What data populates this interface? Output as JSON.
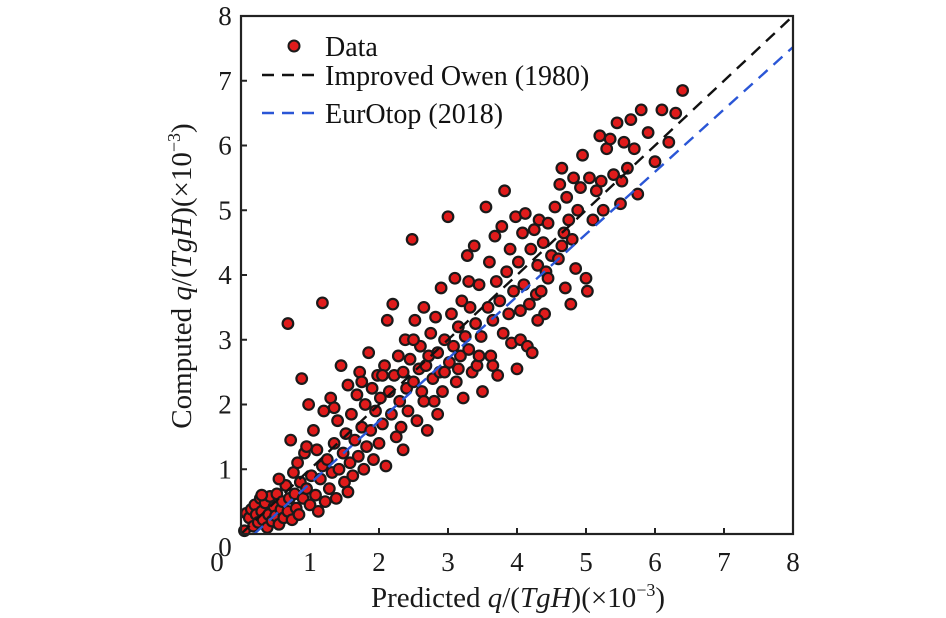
{
  "chart_data": {
    "type": "scatter",
    "title": "",
    "xlabel": {
      "prefix": "Predicted ",
      "var_q": "q",
      "slash": "/(",
      "var_T": "T",
      "var_g": "g",
      "var_H": "H",
      "suffix": ")(×10",
      "exp": "−3",
      "close": ")"
    },
    "ylabel": {
      "prefix": "Computed ",
      "var_q": "q",
      "slash": "/(",
      "var_T": "T",
      "var_g": "g",
      "var_H": "H",
      "suffix": ")(×10",
      "exp": "−3",
      "close": ")"
    },
    "xlim": [
      0,
      8
    ],
    "ylim": [
      0,
      8
    ],
    "xticks": [
      "0",
      "1",
      "2",
      "3",
      "4",
      "5",
      "6",
      "7",
      "8"
    ],
    "yticks": [
      "0",
      "1",
      "2",
      "3",
      "4",
      "5",
      "6",
      "7",
      "8"
    ],
    "grid": false,
    "legend": {
      "position": "top-left",
      "entries": [
        {
          "label": "Data",
          "kind": "marker",
          "color": "#e01b1b",
          "edge": "#1a1a1a"
        },
        {
          "label": "Improved Owen (1980)",
          "kind": "dashed-line",
          "color": "#111111"
        },
        {
          "label": "EurOtop (2018)",
          "kind": "dashed-line",
          "color": "#2a56d6"
        }
      ]
    },
    "series": [
      {
        "name": "Improved Owen (1980)",
        "type": "line",
        "color": "#111111",
        "x": [
          0,
          8
        ],
        "y": [
          0,
          8
        ]
      },
      {
        "name": "EurOtop (2018)",
        "type": "line",
        "color": "#2a56d6",
        "x": [
          0.19,
          8
        ],
        "y": [
          0,
          7.52
        ]
      },
      {
        "name": "Data",
        "type": "scatter",
        "color": "#e01b1b",
        "edge": "#1a1a1a",
        "points": [
          [
            0.05,
            0.05
          ],
          [
            0.08,
            0.32
          ],
          [
            0.12,
            0.25
          ],
          [
            0.15,
            0.38
          ],
          [
            0.18,
            0.12
          ],
          [
            0.2,
            0.45
          ],
          [
            0.22,
            0.3
          ],
          [
            0.25,
            0.18
          ],
          [
            0.28,
            0.55
          ],
          [
            0.3,
            0.35
          ],
          [
            0.32,
            0.22
          ],
          [
            0.35,
            0.48
          ],
          [
            0.38,
            0.1
          ],
          [
            0.4,
            0.3
          ],
          [
            0.42,
            0.58
          ],
          [
            0.45,
            0.2
          ],
          [
            0.48,
            0.42
          ],
          [
            0.5,
            0.28
          ],
          [
            0.52,
            0.62
          ],
          [
            0.55,
            0.15
          ],
          [
            0.58,
            0.38
          ],
          [
            0.6,
            0.5
          ],
          [
            0.62,
            0.25
          ],
          [
            0.65,
            0.75
          ],
          [
            0.68,
            0.35
          ],
          [
            0.7,
            0.55
          ],
          [
            0.72,
            1.45
          ],
          [
            0.74,
            0.22
          ],
          [
            0.76,
            0.95
          ],
          [
            0.78,
            0.62
          ],
          [
            0.8,
            0.4
          ],
          [
            0.82,
            1.1
          ],
          [
            0.84,
            0.3
          ],
          [
            0.86,
            0.8
          ],
          [
            0.88,
            2.4
          ],
          [
            0.9,
            0.55
          ],
          [
            0.92,
            1.25
          ],
          [
            0.95,
            0.7
          ],
          [
            0.98,
            2.0
          ],
          [
            1.0,
            0.45
          ],
          [
            1.02,
            0.9
          ],
          [
            1.05,
            1.6
          ],
          [
            1.08,
            0.6
          ],
          [
            1.1,
            1.3
          ],
          [
            1.12,
            0.35
          ],
          [
            1.15,
            0.85
          ],
          [
            1.18,
            1.05
          ],
          [
            1.2,
            1.9
          ],
          [
            1.22,
            0.5
          ],
          [
            1.25,
            1.15
          ],
          [
            1.28,
            0.7
          ],
          [
            1.3,
            2.1
          ],
          [
            1.32,
            0.95
          ],
          [
            1.35,
            1.4
          ],
          [
            1.38,
            0.55
          ],
          [
            1.4,
            1.75
          ],
          [
            1.42,
            1.0
          ],
          [
            1.45,
            2.6
          ],
          [
            1.48,
            1.25
          ],
          [
            1.5,
            0.8
          ],
          [
            0.68,
            3.25
          ],
          [
            1.18,
            3.57
          ],
          [
            1.52,
            1.55
          ],
          [
            1.55,
            2.3
          ],
          [
            1.58,
            1.1
          ],
          [
            1.6,
            1.85
          ],
          [
            1.62,
            0.9
          ],
          [
            1.65,
            1.45
          ],
          [
            1.68,
            2.15
          ],
          [
            1.7,
            1.2
          ],
          [
            1.72,
            2.5
          ],
          [
            1.75,
            1.65
          ],
          [
            1.78,
            1.0
          ],
          [
            1.8,
            2.0
          ],
          [
            1.82,
            1.35
          ],
          [
            1.85,
            2.8
          ],
          [
            1.88,
            1.6
          ],
          [
            1.9,
            2.25
          ],
          [
            1.92,
            1.15
          ],
          [
            1.95,
            1.9
          ],
          [
            1.98,
            2.45
          ],
          [
            2.0,
            1.4
          ],
          [
            2.02,
            2.1
          ],
          [
            2.05,
            1.7
          ],
          [
            2.08,
            2.6
          ],
          [
            2.1,
            1.05
          ],
          [
            2.12,
            3.3
          ],
          [
            2.15,
            2.2
          ],
          [
            2.18,
            1.85
          ],
          [
            2.2,
            3.55
          ],
          [
            2.22,
            2.45
          ],
          [
            2.25,
            1.5
          ],
          [
            2.28,
            2.75
          ],
          [
            2.3,
            2.05
          ],
          [
            2.32,
            1.65
          ],
          [
            2.35,
            2.5
          ],
          [
            2.38,
            3.0
          ],
          [
            2.4,
            2.25
          ],
          [
            2.42,
            1.9
          ],
          [
            2.45,
            2.7
          ],
          [
            2.48,
            4.55
          ],
          [
            2.5,
            2.35
          ],
          [
            2.52,
            3.3
          ],
          [
            2.55,
            1.75
          ],
          [
            2.58,
            2.55
          ],
          [
            2.6,
            2.9
          ],
          [
            2.62,
            2.2
          ],
          [
            2.65,
            3.5
          ],
          [
            2.68,
            2.6
          ],
          [
            2.7,
            1.6
          ],
          [
            2.72,
            2.75
          ],
          [
            2.75,
            3.1
          ],
          [
            2.78,
            2.4
          ],
          [
            2.8,
            2.05
          ],
          [
            2.82,
            3.35
          ],
          [
            2.85,
            2.8
          ],
          [
            2.88,
            2.5
          ],
          [
            2.9,
            3.8
          ],
          [
            2.92,
            2.2
          ],
          [
            2.95,
            3.0
          ],
          [
            3.0,
            4.9
          ],
          [
            3.02,
            2.65
          ],
          [
            3.05,
            3.4
          ],
          [
            3.08,
            2.9
          ],
          [
            3.1,
            3.95
          ],
          [
            3.12,
            2.35
          ],
          [
            3.15,
            3.2
          ],
          [
            3.18,
            2.75
          ],
          [
            3.2,
            3.6
          ],
          [
            3.22,
            2.1
          ],
          [
            3.25,
            3.05
          ],
          [
            3.28,
            4.3
          ],
          [
            3.3,
            2.85
          ],
          [
            3.32,
            3.5
          ],
          [
            3.35,
            2.5
          ],
          [
            3.38,
            4.45
          ],
          [
            3.4,
            3.25
          ],
          [
            3.42,
            2.6
          ],
          [
            3.45,
            3.85
          ],
          [
            3.48,
            3.05
          ],
          [
            3.5,
            2.2
          ],
          [
            3.55,
            5.05
          ],
          [
            3.58,
            3.5
          ],
          [
            3.6,
            4.2
          ],
          [
            3.62,
            2.75
          ],
          [
            3.65,
            3.3
          ],
          [
            3.68,
            4.6
          ],
          [
            3.7,
            3.9
          ],
          [
            3.72,
            2.45
          ],
          [
            3.75,
            3.6
          ],
          [
            3.78,
            4.75
          ],
          [
            3.8,
            3.1
          ],
          [
            3.82,
            5.3
          ],
          [
            3.85,
            4.05
          ],
          [
            3.88,
            3.4
          ],
          [
            3.9,
            4.4
          ],
          [
            3.92,
            2.95
          ],
          [
            3.95,
            3.75
          ],
          [
            3.98,
            4.9
          ],
          [
            4.0,
            2.55
          ],
          [
            4.02,
            4.2
          ],
          [
            4.05,
            3.0
          ],
          [
            4.08,
            4.65
          ],
          [
            4.1,
            3.85
          ],
          [
            4.12,
            4.95
          ],
          [
            4.15,
            2.9
          ],
          [
            4.18,
            3.55
          ],
          [
            4.2,
            4.4
          ],
          [
            4.22,
            2.8
          ],
          [
            4.25,
            4.7
          ],
          [
            4.28,
            3.7
          ],
          [
            4.3,
            4.15
          ],
          [
            4.32,
            4.85
          ],
          [
            4.35,
            3.75
          ],
          [
            4.38,
            4.5
          ],
          [
            4.4,
            3.4
          ],
          [
            4.42,
            4.05
          ],
          [
            4.45,
            4.8
          ],
          [
            4.5,
            4.3
          ],
          [
            4.55,
            5.05
          ],
          [
            4.6,
            4.25
          ],
          [
            4.62,
            5.4
          ],
          [
            4.65,
            5.65
          ],
          [
            4.68,
            4.65
          ],
          [
            4.7,
            3.8
          ],
          [
            4.72,
            5.2
          ],
          [
            4.75,
            4.85
          ],
          [
            4.78,
            3.55
          ],
          [
            4.8,
            4.55
          ],
          [
            4.82,
            5.5
          ],
          [
            4.85,
            4.1
          ],
          [
            4.88,
            5.0
          ],
          [
            4.92,
            5.35
          ],
          [
            4.95,
            5.85
          ],
          [
            5.0,
            3.95
          ],
          [
            5.02,
            3.75
          ],
          [
            5.05,
            5.5
          ],
          [
            5.1,
            4.85
          ],
          [
            5.15,
            5.3
          ],
          [
            5.2,
            6.15
          ],
          [
            5.22,
            5.45
          ],
          [
            5.25,
            5.0
          ],
          [
            5.3,
            5.95
          ],
          [
            5.35,
            6.1
          ],
          [
            5.4,
            5.55
          ],
          [
            5.45,
            6.35
          ],
          [
            5.5,
            5.1
          ],
          [
            5.52,
            5.45
          ],
          [
            5.55,
            6.05
          ],
          [
            5.6,
            5.65
          ],
          [
            5.65,
            6.4
          ],
          [
            5.7,
            5.95
          ],
          [
            5.75,
            5.25
          ],
          [
            5.8,
            6.55
          ],
          [
            5.9,
            6.2
          ],
          [
            6.0,
            5.75
          ],
          [
            6.1,
            6.55
          ],
          [
            6.2,
            6.05
          ],
          [
            6.3,
            6.5
          ],
          [
            6.4,
            6.85
          ],
          [
            0.3,
            0.6
          ],
          [
            0.55,
            0.85
          ],
          [
            0.95,
            1.35
          ],
          [
            1.35,
            1.95
          ],
          [
            1.55,
            0.65
          ],
          [
            1.75,
            2.35
          ],
          [
            2.05,
            2.45
          ],
          [
            2.35,
            1.3
          ],
          [
            2.65,
            2.05
          ],
          [
            2.85,
            1.85
          ],
          [
            3.15,
            2.55
          ],
          [
            3.45,
            2.75
          ],
          [
            3.65,
            2.6
          ],
          [
            4.05,
            3.45
          ],
          [
            4.3,
            3.3
          ],
          [
            4.45,
            3.95
          ],
          [
            4.65,
            4.45
          ],
          [
            3.3,
            3.9
          ],
          [
            2.95,
            2.5
          ],
          [
            2.5,
            3.0
          ]
        ]
      }
    ]
  }
}
